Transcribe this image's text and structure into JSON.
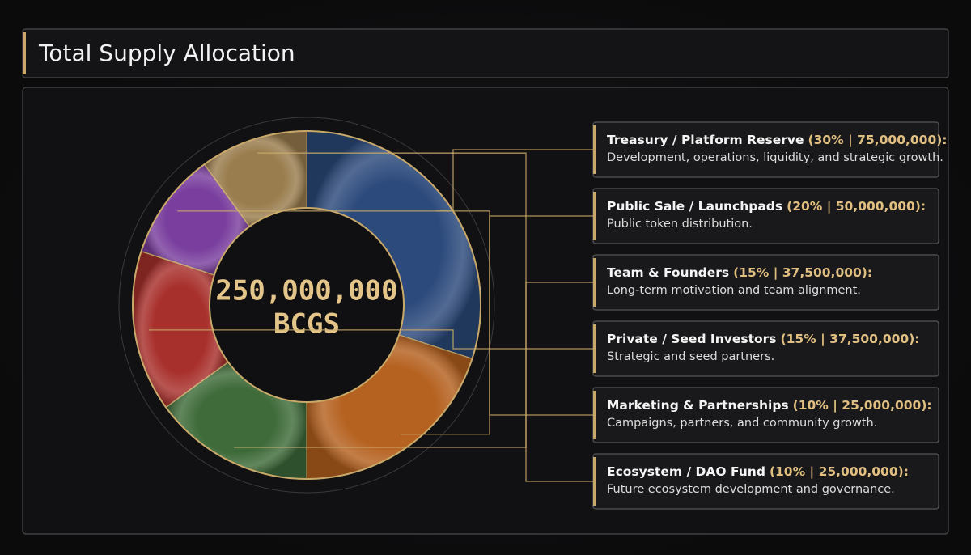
{
  "chart_data": {
    "type": "pie",
    "title": "Total Supply Allocation",
    "center_label": "250,000,000",
    "center_unit": "BCGS",
    "categories": [
      "Treasury / Platform Reserve",
      "Public Sale / Launchpads",
      "Team & Founders",
      "Private / Seed Investors",
      "Marketing & Partnerships",
      "Ecosystem / DAO Fund"
    ],
    "values": [
      30,
      20,
      15,
      15,
      10,
      10
    ],
    "value_labels": [
      "(30% | 75,000,000):",
      "(20% | 50,000,000):",
      "(15% | 37,500,000):",
      "(15% | 37,500,000):",
      "(10% | 25,000,000):",
      "(10% | 25,000,000):"
    ],
    "descriptions": [
      "Development, operations, liquidity, and strategic growth.",
      "Public token distribution.",
      "Long-term motivation and team alignment.",
      "Strategic and seed partners.",
      "Campaigns, partners, and community growth.",
      "Future ecosystem development and governance."
    ],
    "colors": [
      "#2c4a7c",
      "#b5611f",
      "#3f6b3a",
      "#a8302c",
      "#7a3f9e",
      "#9a7d4e"
    ]
  }
}
